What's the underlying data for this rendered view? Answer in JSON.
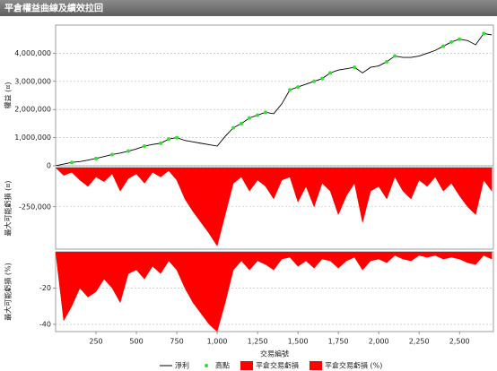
{
  "chart_data": [
    {
      "type": "line",
      "title": "平倉權益曲線及績效拉回",
      "ylabel": "權益 (¤)",
      "xlim": [
        0,
        2710
      ],
      "ylim": [
        0,
        5000000
      ],
      "yticks": [
        0,
        {
          "value": 1000000,
          "label": "1,000,000"
        },
        {
          "value": 2000000,
          "label": "2,000,000"
        },
        {
          "value": 3000000,
          "label": "3,000,000"
        },
        {
          "value": 4000000,
          "label": "4,000,000"
        }
      ],
      "grid": true,
      "series": [
        {
          "name": "淨利",
          "type": "line",
          "color": "#000000",
          "x": [
            0,
            50,
            100,
            150,
            200,
            250,
            300,
            350,
            400,
            450,
            500,
            550,
            600,
            650,
            700,
            750,
            800,
            850,
            900,
            950,
            1000,
            1050,
            1100,
            1150,
            1200,
            1250,
            1300,
            1350,
            1400,
            1450,
            1500,
            1550,
            1600,
            1650,
            1700,
            1750,
            1800,
            1850,
            1900,
            1950,
            2000,
            2050,
            2100,
            2150,
            2200,
            2250,
            2300,
            2350,
            2400,
            2450,
            2500,
            2550,
            2600,
            2650,
            2700
          ],
          "values": [
            0,
            60000,
            120000,
            150000,
            200000,
            260000,
            330000,
            400000,
            450000,
            520000,
            600000,
            700000,
            760000,
            800000,
            950000,
            1000000,
            900000,
            850000,
            800000,
            750000,
            700000,
            1050000,
            1350000,
            1500000,
            1700000,
            1800000,
            1900000,
            1850000,
            2200000,
            2700000,
            2800000,
            2900000,
            3000000,
            3100000,
            3300000,
            3400000,
            3450000,
            3500000,
            3300000,
            3500000,
            3550000,
            3700000,
            3900000,
            3850000,
            3850000,
            3900000,
            4000000,
            4100000,
            4250000,
            4400000,
            4500000,
            4450000,
            4300000,
            4700000,
            4650000
          ]
        },
        {
          "name": "高點",
          "type": "scatter",
          "color": "#33dd33",
          "x": [
            100,
            250,
            350,
            450,
            550,
            650,
            700,
            750,
            1100,
            1150,
            1200,
            1250,
            1300,
            1450,
            1500,
            1600,
            1650,
            1700,
            1850,
            2050,
            2100,
            2400,
            2450,
            2500,
            2650
          ],
          "values": [
            120000,
            260000,
            400000,
            520000,
            700000,
            800000,
            950000,
            1000000,
            1350000,
            1500000,
            1700000,
            1800000,
            1900000,
            2700000,
            2800000,
            3000000,
            3100000,
            3300000,
            3500000,
            3700000,
            3900000,
            4250000,
            4400000,
            4500000,
            4700000
          ]
        }
      ]
    },
    {
      "type": "area",
      "ylabel": "最大可能虧損 (¤)",
      "xlim": [
        0,
        2710
      ],
      "ylim": [
        -520000,
        0
      ],
      "yticks": [
        {
          "value": -250000,
          "label": "-250,000"
        }
      ],
      "grid": true,
      "series": [
        {
          "name": "平倉交易虧損",
          "type": "area",
          "color": "#ff0000",
          "x": [
            0,
            50,
            100,
            150,
            200,
            250,
            300,
            350,
            400,
            450,
            500,
            550,
            600,
            650,
            700,
            750,
            800,
            850,
            900,
            950,
            1000,
            1050,
            1100,
            1150,
            1200,
            1250,
            1300,
            1350,
            1400,
            1450,
            1500,
            1550,
            1600,
            1650,
            1700,
            1750,
            1800,
            1850,
            1900,
            1950,
            2000,
            2050,
            2100,
            2150,
            2200,
            2250,
            2300,
            2350,
            2400,
            2450,
            2500,
            2550,
            2600,
            2650,
            2700
          ],
          "values": [
            0,
            -50000,
            -30000,
            -80000,
            -120000,
            -60000,
            -90000,
            -40000,
            -150000,
            -70000,
            -40000,
            -100000,
            -30000,
            -60000,
            -20000,
            -80000,
            -200000,
            -280000,
            -350000,
            -420000,
            -500000,
            -300000,
            -100000,
            -60000,
            -150000,
            -80000,
            -120000,
            -200000,
            -80000,
            -60000,
            -220000,
            -120000,
            -250000,
            -100000,
            -150000,
            -300000,
            -180000,
            -100000,
            -350000,
            -150000,
            -120000,
            -200000,
            -60000,
            -150000,
            -200000,
            -80000,
            -120000,
            -60000,
            -150000,
            -100000,
            -180000,
            -250000,
            -300000,
            -80000,
            -150000
          ]
        }
      ]
    },
    {
      "type": "area",
      "ylabel": "最大可能虧損 (%)",
      "xlabel": "交易編號",
      "xlim": [
        0,
        2710
      ],
      "ylim": [
        -44,
        0
      ],
      "yticks": [
        -20,
        -40
      ],
      "xticks": [
        250,
        500,
        750,
        {
          "value": 1000,
          "label": "1,000"
        },
        {
          "value": 1250,
          "label": "1,250"
        },
        {
          "value": 1500,
          "label": "1,500"
        },
        {
          "value": 1750,
          "label": "1,750"
        },
        {
          "value": 2000,
          "label": "2,000"
        },
        {
          "value": 2250,
          "label": "2,250"
        },
        {
          "value": 2500,
          "label": "2,500"
        }
      ],
      "grid": true,
      "series": [
        {
          "name": "平倉交易虧損 (%)",
          "type": "area",
          "color": "#ff0000",
          "x": [
            0,
            50,
            100,
            150,
            200,
            250,
            300,
            350,
            400,
            450,
            500,
            550,
            600,
            650,
            700,
            750,
            800,
            850,
            900,
            950,
            1000,
            1050,
            1100,
            1150,
            1200,
            1250,
            1300,
            1350,
            1400,
            1450,
            1500,
            1550,
            1600,
            1650,
            1700,
            1750,
            1800,
            1850,
            1900,
            1950,
            2000,
            2050,
            2100,
            2150,
            2200,
            2250,
            2300,
            2350,
            2400,
            2450,
            2500,
            2550,
            2600,
            2650,
            2700
          ],
          "values": [
            0,
            -38,
            -30,
            -20,
            -25,
            -22,
            -15,
            -20,
            -28,
            -12,
            -10,
            -15,
            -8,
            -12,
            -5,
            -10,
            -20,
            -28,
            -34,
            -40,
            -44,
            -28,
            -10,
            -5,
            -10,
            -5,
            -7,
            -10,
            -4,
            -3,
            -8,
            -5,
            -9,
            -4,
            -5,
            -9,
            -5,
            -3,
            -10,
            -5,
            -4,
            -6,
            -2,
            -4,
            -5,
            -2,
            -3,
            -2,
            -4,
            -3,
            -4,
            -6,
            -7,
            -2,
            -4
          ]
        }
      ]
    }
  ]
}
